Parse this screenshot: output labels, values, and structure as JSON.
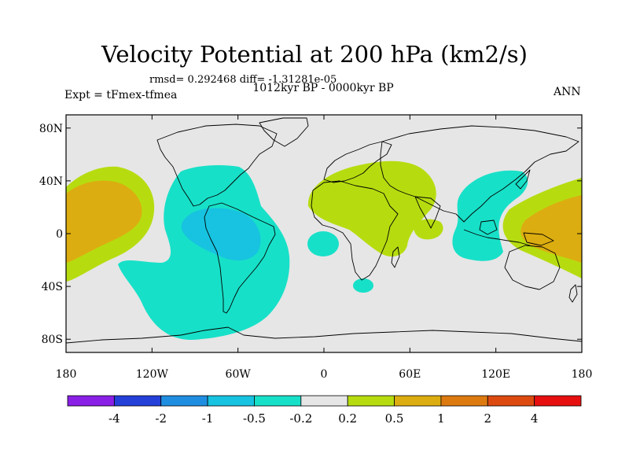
{
  "header": {
    "title": "Velocity Potential at 200 hPa (km2/s)",
    "stats": "rmsd= 0.292468 diff= -1.31281e-05",
    "period": "1012kyr BP - 0000kyr BP",
    "experiment": "Expt = tFmex-tfmea",
    "season": "ANN"
  },
  "map": {
    "projection": "cylindrical equidistant",
    "lon_ticks": [
      "180",
      "120W",
      "60W",
      "0",
      "60E",
      "120E",
      "180"
    ],
    "lat_ticks": [
      "80N",
      "40N",
      "0",
      "40S",
      "80S"
    ]
  },
  "colorbar": {
    "levels": [
      "-4",
      "-2",
      "-1",
      "-0.5",
      "-0.2",
      "0.2",
      "0.5",
      "1",
      "2",
      "4"
    ],
    "colors": [
      "#8a1fe6",
      "#2440d8",
      "#1f8ee0",
      "#17c3e0",
      "#17e0c8",
      "#e6e6e6",
      "#b6dc10",
      "#dcad10",
      "#dc7a10",
      "#dc4a10",
      "#e61010"
    ]
  },
  "colors": {
    "background": "#e6e6e6",
    "frame": "#000000",
    "coast": "#000000"
  },
  "chart_data": {
    "type": "heatmap",
    "title": "Velocity Potential at 200 hPa (km2/s)",
    "units": "km2/s",
    "xlim": [
      -180,
      180
    ],
    "ylim": [
      -90,
      90
    ],
    "features": [
      {
        "region": "Central Pacific (170E-150W, 40N-30S)",
        "level": "0.5 to 1",
        "sign": "positive"
      },
      {
        "region": "Western Pacific / Maritime Continent (140E-180, 30N-25S)",
        "level": "0.5 to 1",
        "sign": "positive"
      },
      {
        "region": "Africa / Middle East / Indian Ocean (20W-80E, 45N-20S)",
        "level": "0.2 to 0.5",
        "sign": "positive"
      },
      {
        "region": "Americas / Atlantic (120W-10W, 40N-70S)",
        "level": "-0.5 to -0.2",
        "sign": "negative"
      },
      {
        "region": "South America (85W-40W, 10N-20S)",
        "level": "-1 to -0.5",
        "sign": "negative"
      },
      {
        "region": "East Asia / West Pacific (110E-150E, 40N-20S)",
        "level": "-0.5 to -0.2",
        "sign": "negative"
      }
    ]
  }
}
